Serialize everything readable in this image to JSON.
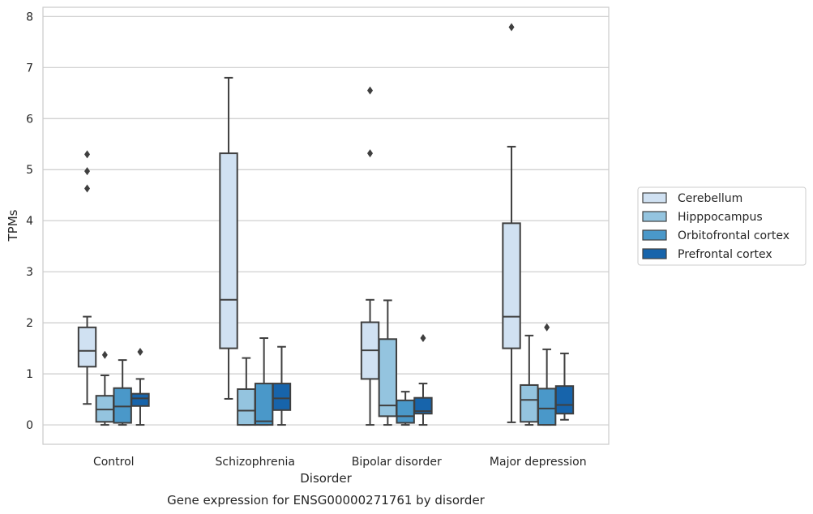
{
  "chart_data": {
    "type": "box",
    "xlabel": "Disorder",
    "ylabel": "TPMs",
    "caption": "Gene expression for ENSG00000271761 by disorder",
    "ylim": [
      -0.38,
      8.18
    ],
    "yticks": [
      "0",
      "1",
      "2",
      "3",
      "4",
      "5",
      "6",
      "7",
      "8"
    ],
    "grid": true,
    "legend_position": "right",
    "categories": [
      "Control",
      "Schizophrenia",
      "Bipolar disorder",
      "Major depression"
    ],
    "series": [
      {
        "name": "Cerebellum",
        "color": "#d0e1f2",
        "boxes": [
          {
            "whisker_low": 0.41,
            "q1": 1.14,
            "median": 1.45,
            "q3": 1.91,
            "whisker_high": 2.12,
            "outliers": [
              4.63,
              4.97,
              5.3
            ]
          },
          {
            "whisker_low": 0.51,
            "q1": 1.5,
            "median": 2.45,
            "q3": 5.32,
            "whisker_high": 6.8,
            "outliers": []
          },
          {
            "whisker_low": 0.0,
            "q1": 0.9,
            "median": 1.46,
            "q3": 2.01,
            "whisker_high": 2.45,
            "outliers": [
              5.32,
              6.55
            ]
          },
          {
            "whisker_low": 0.05,
            "q1": 1.5,
            "median": 2.12,
            "q3": 3.95,
            "whisker_high": 5.45,
            "outliers": [
              7.79
            ]
          }
        ]
      },
      {
        "name": "Hipppocampus",
        "color": "#94c4df",
        "boxes": [
          {
            "whisker_low": 0.0,
            "q1": 0.06,
            "median": 0.3,
            "q3": 0.57,
            "whisker_high": 0.97,
            "outliers": [
              1.37
            ]
          },
          {
            "whisker_low": 0.0,
            "q1": 0.0,
            "median": 0.28,
            "q3": 0.7,
            "whisker_high": 1.31,
            "outliers": []
          },
          {
            "whisker_low": 0.0,
            "q1": 0.17,
            "median": 0.38,
            "q3": 1.68,
            "whisker_high": 2.44,
            "outliers": []
          },
          {
            "whisker_low": 0.0,
            "q1": 0.06,
            "median": 0.49,
            "q3": 0.78,
            "whisker_high": 1.75,
            "outliers": []
          }
        ]
      },
      {
        "name": "Orbitofrontal cortex",
        "color": "#4a98c9",
        "boxes": [
          {
            "whisker_low": 0.0,
            "q1": 0.04,
            "median": 0.36,
            "q3": 0.72,
            "whisker_high": 1.27,
            "outliers": []
          },
          {
            "whisker_low": 0.0,
            "q1": 0.0,
            "median": 0.07,
            "q3": 0.81,
            "whisker_high": 1.7,
            "outliers": []
          },
          {
            "whisker_low": 0.0,
            "q1": 0.04,
            "median": 0.17,
            "q3": 0.48,
            "whisker_high": 0.65,
            "outliers": []
          },
          {
            "whisker_low": 0.0,
            "q1": 0.0,
            "median": 0.32,
            "q3": 0.71,
            "whisker_high": 1.48,
            "outliers": [
              1.91
            ]
          }
        ]
      },
      {
        "name": "Prefrontal cortex",
        "color": "#1764ab",
        "boxes": [
          {
            "whisker_low": 0.0,
            "q1": 0.37,
            "median": 0.52,
            "q3": 0.61,
            "whisker_high": 0.9,
            "outliers": [
              1.43
            ]
          },
          {
            "whisker_low": 0.0,
            "q1": 0.29,
            "median": 0.52,
            "q3": 0.81,
            "whisker_high": 1.53,
            "outliers": []
          },
          {
            "whisker_low": 0.0,
            "q1": 0.22,
            "median": 0.27,
            "q3": 0.53,
            "whisker_high": 0.81,
            "outliers": [
              1.7
            ]
          },
          {
            "whisker_low": 0.1,
            "q1": 0.22,
            "median": 0.39,
            "q3": 0.76,
            "whisker_high": 1.4,
            "outliers": []
          }
        ]
      }
    ]
  }
}
